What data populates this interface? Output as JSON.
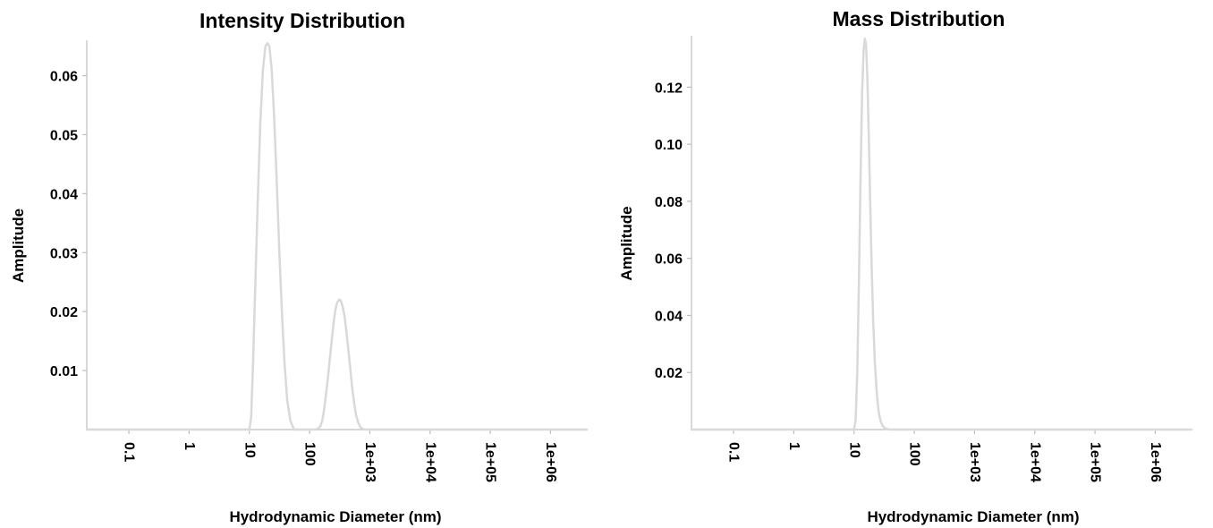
{
  "chart_data": [
    {
      "type": "line",
      "title": "Intensity Distribution",
      "xlabel": "Hydrodynamic Diameter (nm)",
      "ylabel": "Amplitude",
      "x_scale": "log",
      "xlim": [
        0.02,
        4000000
      ],
      "ylim": [
        0,
        0.066
      ],
      "x_ticks": [
        0.1,
        1,
        10,
        100,
        1000,
        10000,
        100000,
        1000000
      ],
      "x_tick_labels": [
        "0.1",
        "1",
        "10",
        "100",
        "1e+03",
        "1e+04",
        "1e+05",
        "1e+06"
      ],
      "y_ticks": [
        0.01,
        0.02,
        0.03,
        0.04,
        0.05,
        0.06
      ],
      "y_tick_labels": [
        "0.01",
        "0.02",
        "0.03",
        "0.04",
        "0.05",
        "0.06"
      ],
      "grid": false,
      "legend": "none",
      "series": [
        {
          "color": "#d9d9d9",
          "x": [
            0.02,
            10,
            10.7,
            11.5,
            12.5,
            13.8,
            15.2,
            16.8,
            18.5,
            20,
            21.5,
            23.5,
            25.8,
            28.5,
            31.5,
            35,
            38.5,
            42.5,
            48,
            55,
            70,
            100,
            130,
            150,
            162,
            172,
            185,
            200,
            217,
            235,
            253,
            270,
            287,
            305,
            322,
            340,
            360,
            383,
            410,
            440,
            475,
            510,
            550,
            590,
            640,
            700,
            800,
            4000000
          ],
          "y": [
            0,
            0,
            0.002,
            0.011,
            0.024,
            0.039,
            0.052,
            0.061,
            0.065,
            0.0655,
            0.065,
            0.061,
            0.053,
            0.042,
            0.03,
            0.019,
            0.011,
            0.005,
            0.0015,
            0,
            0,
            0,
            0,
            0.0005,
            0.0015,
            0.003,
            0.0055,
            0.0085,
            0.012,
            0.0155,
            0.0185,
            0.0205,
            0.0215,
            0.022,
            0.022,
            0.0215,
            0.0205,
            0.019,
            0.0165,
            0.0135,
            0.0102,
            0.007,
            0.0045,
            0.0025,
            0.0012,
            0.0004,
            0,
            0
          ]
        }
      ]
    },
    {
      "type": "line",
      "title": "Mass Distribution",
      "xlabel": "Hydrodynamic Diameter (nm)",
      "ylabel": "Amplitude",
      "x_scale": "log",
      "xlim": [
        0.02,
        4000000
      ],
      "ylim": [
        0,
        0.138
      ],
      "x_ticks": [
        0.1,
        1,
        10,
        100,
        1000,
        10000,
        100000,
        1000000
      ],
      "x_tick_labels": [
        "0.1",
        "1",
        "10",
        "100",
        "1e+03",
        "1e+04",
        "1e+05",
        "1e+06"
      ],
      "y_ticks": [
        0.02,
        0.04,
        0.06,
        0.08,
        0.1,
        0.12
      ],
      "y_tick_labels": [
        "0.02",
        "0.04",
        "0.06",
        "0.08",
        "0.10",
        "0.12"
      ],
      "grid": false,
      "legend": "none",
      "series": [
        {
          "color": "#d9d9d9",
          "x": [
            0.02,
            10,
            10.6,
            11.3,
            12,
            12.8,
            13.6,
            14.4,
            15.1,
            15.8,
            16.6,
            17.5,
            18.5,
            19.6,
            20.8,
            22.2,
            23.8,
            25.5,
            27.5,
            30,
            33,
            37,
            40,
            4000000
          ],
          "y": [
            0,
            0,
            0.003,
            0.02,
            0.05,
            0.088,
            0.118,
            0.133,
            0.137,
            0.135,
            0.124,
            0.104,
            0.08,
            0.057,
            0.038,
            0.023,
            0.013,
            0.0065,
            0.003,
            0.0012,
            0.0004,
            0.0001,
            0,
            0
          ]
        }
      ]
    }
  ]
}
